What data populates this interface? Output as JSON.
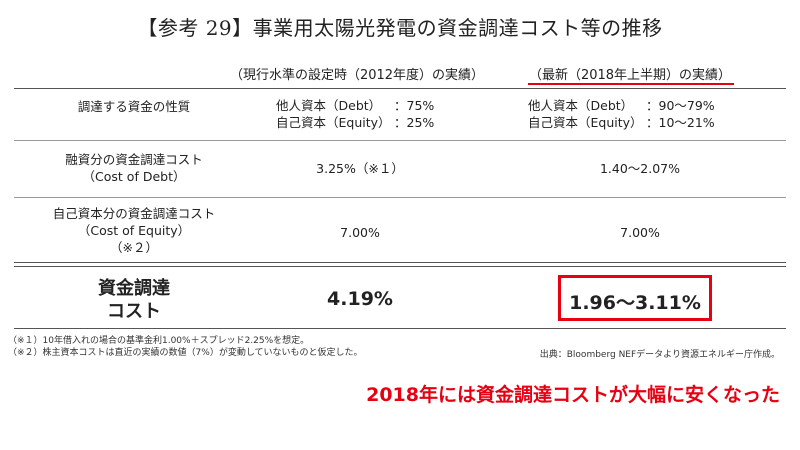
{
  "title": "【参考 29】事業用太陽光発電の資金調達コスト等の推移",
  "columns": {
    "current": "（現行水準の設定時（2012年度）の実績）",
    "latest": "（最新（2018年上半期）の実績）"
  },
  "rows": {
    "nature": {
      "label": "調達する資金の性質",
      "current": [
        {
          "k": "他人資本（Debt）",
          "v": "：75%"
        },
        {
          "k": "自己資本（Equity）",
          "v": "：25%"
        }
      ],
      "latest": [
        {
          "k": "他人資本（Debt）",
          "v": "：90〜79%"
        },
        {
          "k": "自己資本（Equity）",
          "v": "：10〜21%"
        }
      ]
    },
    "debt": {
      "label_line1": "融資分の資金調達コスト",
      "label_line2": "（Cost of Debt）",
      "current": "3.25%（※１）",
      "latest": "1.40〜2.07%"
    },
    "equity": {
      "label_line1": "自己資本分の資金調達コスト",
      "label_line2": "（Cost of Equity）",
      "label_line3": "（※２）",
      "current": "7.00%",
      "latest": "7.00%"
    },
    "total": {
      "label_line1": "資金調達",
      "label_line2": "コスト",
      "current": "4.19%",
      "latest": "1.96〜3.11%"
    }
  },
  "notes": {
    "n1": "（※１）10年借入れの場合の基準金利1.00%＋スプレッド2.25%を想定。",
    "n2": "（※２）株主資本コストは直近の実績の数値（7%）が変動していないものと仮定した。"
  },
  "source": "出典：Bloomberg NEFデータより資源エネルギー庁作成。",
  "callout": "2018年には資金調達コストが大幅に安くなった",
  "colors": {
    "accent": "#e60012"
  }
}
